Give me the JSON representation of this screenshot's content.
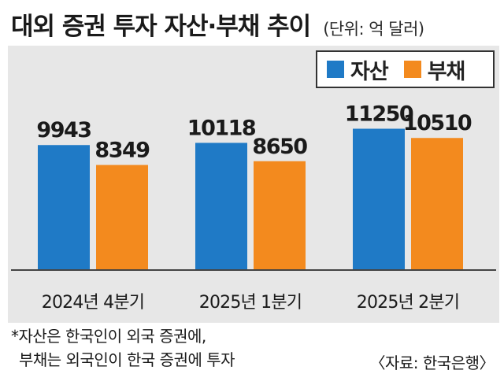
{
  "header": {
    "title": "대외 증권 투자 자산·부채 추이",
    "unit": "(단위: 억 달러)"
  },
  "colors": {
    "asset": "#1f7ac6",
    "liability": "#f38a1e",
    "panel_background": "#e7e7e7"
  },
  "chart_data": {
    "type": "bar",
    "title": "대외 증권 투자 자산·부채 추이",
    "unit": "(단위: 억 달러)",
    "categories": [
      "2024년 4분기",
      "2025년 1분기",
      "2025년 2분기"
    ],
    "series": [
      {
        "name": "자산",
        "values": [
          9943,
          10118,
          11250
        ],
        "labels": [
          "9943",
          "10118",
          "11250"
        ]
      },
      {
        "name": "부채",
        "values": [
          8349,
          8650,
          10510
        ],
        "labels": [
          "8349",
          "8650",
          "10510"
        ]
      }
    ],
    "ylim": [
      0,
      15000
    ],
    "grid": false,
    "legend_position": "top-right"
  },
  "footer": {
    "note_line1": "*자산은 한국인이 외국 증권에,",
    "note_line2": "부채는 외국인이 한국 증권에 투자",
    "source": "〈자료: 한국은행〉"
  }
}
